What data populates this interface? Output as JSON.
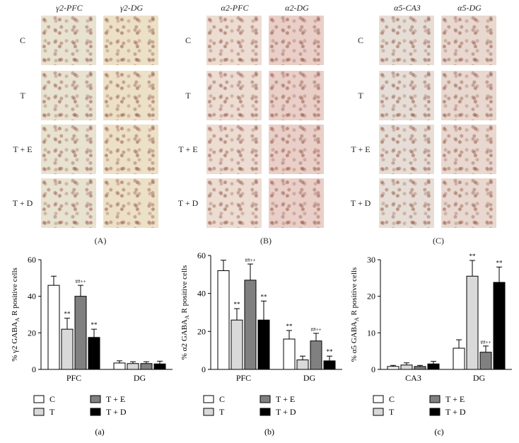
{
  "micrograph_panels": [
    {
      "label": "(A)",
      "columns": [
        "γ2-PFC",
        "γ2-DG"
      ],
      "rows": [
        "C",
        "T",
        "T + E",
        "T + D"
      ],
      "tints": [
        "#e8e2d0",
        "#ece1c7"
      ]
    },
    {
      "label": "(B)",
      "columns": [
        "α2-PFC",
        "α2-DG"
      ],
      "rows": [
        "C",
        "T",
        "T + E",
        "T + D"
      ],
      "tints": [
        "#ecdcd2",
        "#e9cfc8"
      ]
    },
    {
      "label": "(C)",
      "columns": [
        "α5-CA3",
        "α5-DG"
      ],
      "rows": [
        "C",
        "T",
        "T + E",
        "T + D"
      ],
      "tints": [
        "#e6ded6",
        "#e8d8cf"
      ]
    }
  ],
  "chart_data": [
    {
      "type": "bar",
      "panel_label": "(a)",
      "ylabel": "% γ2 GABA_A R positive cells",
      "ylim": [
        0,
        60
      ],
      "yticks": [
        0,
        20,
        40,
        60
      ],
      "categories": [
        "PFC",
        "DG"
      ],
      "series": [
        {
          "name": "C",
          "color": "#ffffff",
          "values": [
            46,
            3.5
          ],
          "errors": [
            5,
            1.2
          ],
          "annotations": [
            "",
            ""
          ]
        },
        {
          "name": "T",
          "color": "#d9d9d9",
          "values": [
            22,
            3.2
          ],
          "errors": [
            6,
            1
          ],
          "annotations": [
            "**",
            ""
          ]
        },
        {
          "name": "T + E",
          "color": "#808080",
          "values": [
            40,
            3.2
          ],
          "errors": [
            6,
            1
          ],
          "annotations": [
            "##++",
            ""
          ]
        },
        {
          "name": "T + D",
          "color": "#000000",
          "values": [
            17.5,
            3
          ],
          "errors": [
            4.5,
            1.5
          ],
          "annotations": [
            "**",
            ""
          ]
        }
      ]
    },
    {
      "type": "bar",
      "panel_label": "(b)",
      "ylabel": "% α2 GABA_A R positive cells",
      "ylim": [
        0,
        60
      ],
      "yticks": [
        0,
        20,
        40,
        60
      ],
      "categories": [
        "PFC",
        "DG"
      ],
      "series": [
        {
          "name": "C",
          "color": "#ffffff",
          "values": [
            52,
            16
          ],
          "errors": [
            5.5,
            4.5
          ],
          "annotations": [
            "",
            "**"
          ]
        },
        {
          "name": "T",
          "color": "#d9d9d9",
          "values": [
            26,
            5
          ],
          "errors": [
            6,
            2
          ],
          "annotations": [
            "**",
            ""
          ]
        },
        {
          "name": "T + E",
          "color": "#808080",
          "values": [
            47,
            15
          ],
          "errors": [
            8.5,
            4
          ],
          "annotations": [
            "##++",
            "##++"
          ]
        },
        {
          "name": "T + D",
          "color": "#000000",
          "values": [
            26,
            4.5
          ],
          "errors": [
            10,
            2.5
          ],
          "annotations": [
            "**",
            "**"
          ]
        }
      ]
    },
    {
      "type": "bar",
      "panel_label": "(c)",
      "ylabel": "% α5 GABA_A R positive cells",
      "ylim": [
        0,
        30
      ],
      "yticks": [
        0,
        10,
        20,
        30
      ],
      "categories": [
        "CA3",
        "DG"
      ],
      "series": [
        {
          "name": "C",
          "color": "#ffffff",
          "values": [
            0.8,
            5.8
          ],
          "errors": [
            0.3,
            2.3
          ],
          "annotations": [
            "",
            ""
          ]
        },
        {
          "name": "T",
          "color": "#d9d9d9",
          "values": [
            1.2,
            25.5
          ],
          "errors": [
            0.6,
            4.3
          ],
          "annotations": [
            "",
            "**"
          ]
        },
        {
          "name": "T + E",
          "color": "#808080",
          "values": [
            0.8,
            4.7
          ],
          "errors": [
            0.3,
            1.7
          ],
          "annotations": [
            "",
            "##++"
          ]
        },
        {
          "name": "T + D",
          "color": "#000000",
          "values": [
            1.5,
            23.8
          ],
          "errors": [
            0.7,
            4.2
          ],
          "annotations": [
            "",
            "**"
          ]
        }
      ]
    }
  ]
}
